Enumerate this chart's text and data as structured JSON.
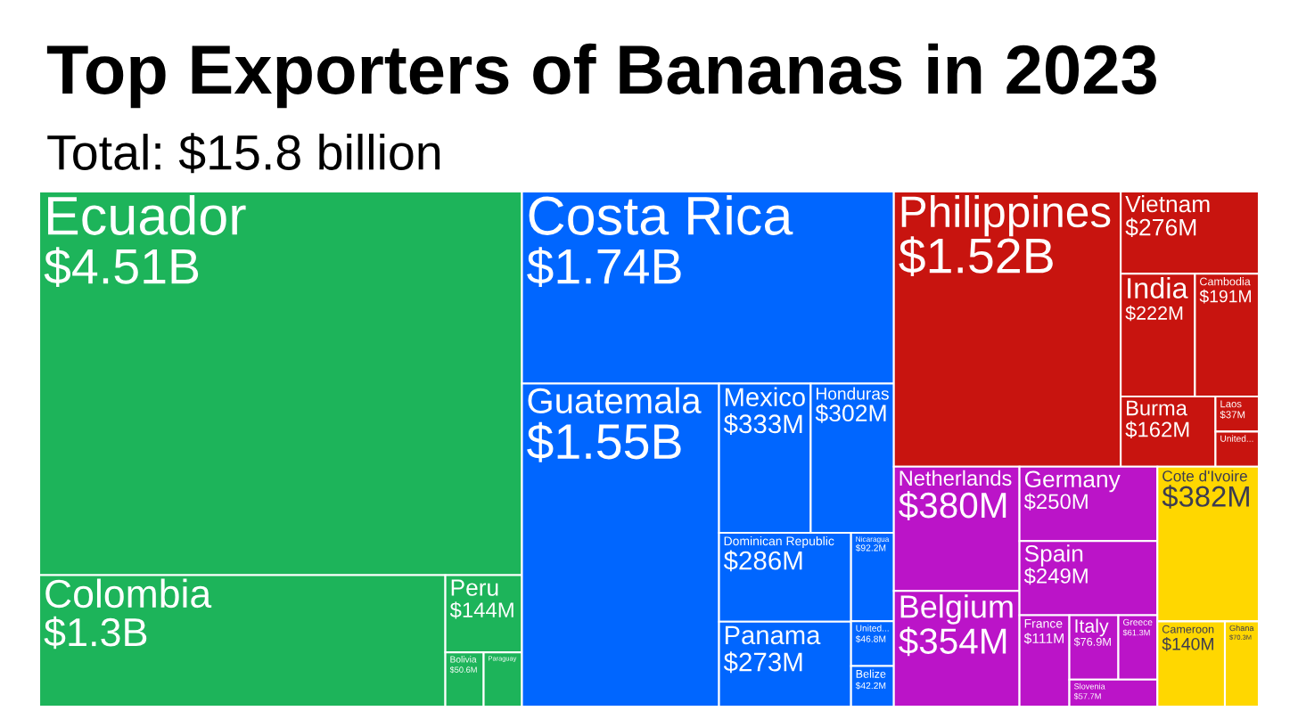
{
  "chart_data": {
    "type": "other",
    "title": "Top Exporters of Bananas in 2023",
    "subtitle": "Total: $15.8 billion",
    "categories": [
      "Ecuador",
      "Colombia",
      "Peru",
      "Bolivia",
      "Paraguay",
      "Costa Rica",
      "Guatemala",
      "Mexico",
      "Honduras",
      "Dominican Republic",
      "Panama",
      "Nicaragua",
      "United...",
      "Belize",
      "Philippines",
      "Vietnam",
      "India",
      "Cambodia",
      "Burma",
      "Laos",
      "United...",
      "Netherlands",
      "Belgium",
      "Germany",
      "Spain",
      "France",
      "Italy",
      "Greece",
      "Slovenia",
      "Cote d'Ivoire",
      "Cameroon",
      "Ghana"
    ],
    "values": [
      4510000000,
      1300000000,
      144000000,
      50600000,
      null,
      1740000000,
      1550000000,
      333000000,
      302000000,
      286000000,
      273000000,
      92200000,
      46800000,
      42200000,
      1520000000,
      276000000,
      222000000,
      191000000,
      162000000,
      37000000,
      null,
      380000000,
      354000000,
      250000000,
      249000000,
      111000000,
      76900000,
      61300000,
      57700000,
      382000000,
      140000000,
      70300000
    ],
    "value_labels": [
      "$4.51B",
      "$1.3B",
      "$144M",
      "$50.6M",
      null,
      "$1.74B",
      "$1.55B",
      "$333M",
      "$302M",
      "$286M",
      "$273M",
      "$92.2M",
      "$46.8M",
      "$42.2M",
      "$1.52B",
      "$276M",
      "$222M",
      "$191M",
      "$162M",
      "$37M",
      null,
      "$380M",
      "$354M",
      "$250M",
      "$249M",
      "$111M",
      "$76.9M",
      "$61.3M",
      "$57.7M",
      "$382M",
      "$140M",
      "$70.3M"
    ],
    "colors": [
      "#1db45a",
      "#1db45a",
      "#1db45a",
      "#1db45a",
      "#1db45a",
      "#0066ff",
      "#0066ff",
      "#0066ff",
      "#0066ff",
      "#0066ff",
      "#0066ff",
      "#0066ff",
      "#0066ff",
      "#0066ff",
      "#c8140f",
      "#c8140f",
      "#c8140f",
      "#c8140f",
      "#c8140f",
      "#c8140f",
      "#c8140f",
      "#bb14c8",
      "#bb14c8",
      "#bb14c8",
      "#bb14c8",
      "#bb14c8",
      "#bb14c8",
      "#bb14c8",
      "#bb14c8",
      "#ffd700",
      "#ffd700",
      "#ffd700"
    ]
  }
}
